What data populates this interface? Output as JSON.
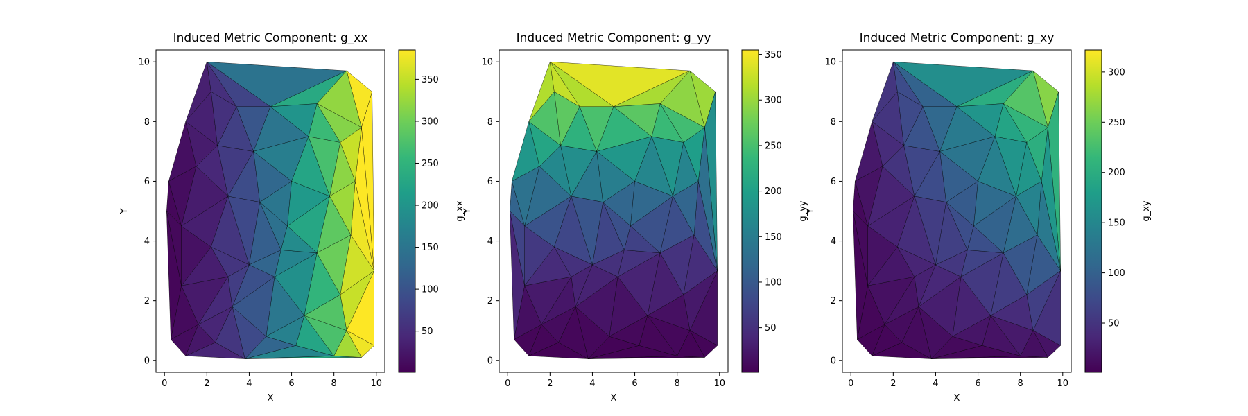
{
  "chart_data": [
    {
      "type": "heatmap",
      "title": "Induced Metric Component: g_xx",
      "xlabel": "X",
      "ylabel": "Y",
      "colorbar_label": "g_xx",
      "xticks": [
        "0",
        "2",
        "4",
        "6",
        "8",
        "10"
      ],
      "yticks": [
        "0",
        "2",
        "4",
        "6",
        "8",
        "10"
      ],
      "xlim": [
        -0.4,
        10.4
      ],
      "ylim": [
        -0.4,
        10.4
      ],
      "colorbar_ticks": [
        "50",
        "100",
        "150",
        "200",
        "250",
        "300",
        "350"
      ],
      "colorbar_tick_values": [
        50,
        100,
        150,
        200,
        250,
        300,
        350
      ],
      "colorbar_range": [
        1,
        385
      ],
      "function": "xx"
    },
    {
      "type": "heatmap",
      "title": "Induced Metric Component: g_yy",
      "xlabel": "X",
      "ylabel": "Y",
      "colorbar_label": "g_yy",
      "xticks": [
        "0",
        "2",
        "4",
        "6",
        "8",
        "10"
      ],
      "yticks": [
        "0",
        "2",
        "4",
        "6",
        "8",
        "10"
      ],
      "xlim": [
        -0.4,
        10.4
      ],
      "ylim": [
        -0.4,
        10.4
      ],
      "colorbar_ticks": [
        "50",
        "100",
        "150",
        "200",
        "250",
        "300",
        "350"
      ],
      "colorbar_tick_values": [
        50,
        100,
        150,
        200,
        250,
        300,
        350
      ],
      "colorbar_range": [
        1,
        355
      ],
      "function": "yy"
    },
    {
      "type": "heatmap",
      "title": "Induced Metric Component: g_xy",
      "xlabel": "X",
      "ylabel": "Y",
      "colorbar_label": "g_xy",
      "xticks": [
        "0",
        "2",
        "4",
        "6",
        "8",
        "10"
      ],
      "yticks": [
        "0",
        "2",
        "4",
        "6",
        "8",
        "10"
      ],
      "xlim": [
        -0.4,
        10.4
      ],
      "ylim": [
        -0.4,
        10.4
      ],
      "colorbar_ticks": [
        "50",
        "100",
        "150",
        "200",
        "250",
        "300"
      ],
      "colorbar_tick_values": [
        50,
        100,
        150,
        200,
        250,
        300
      ],
      "colorbar_range": [
        1,
        322
      ],
      "function": "xy"
    }
  ],
  "mesh": {
    "hull": [
      [
        0.1,
        5.0
      ],
      [
        0.2,
        6.0
      ],
      [
        2.0,
        10.0
      ],
      [
        8.6,
        9.7
      ],
      [
        9.8,
        9.0
      ],
      [
        9.9,
        3.0
      ],
      [
        9.9,
        0.5
      ],
      [
        9.3,
        0.1
      ],
      [
        8.0,
        0.15
      ],
      [
        3.8,
        0.05
      ],
      [
        1.0,
        0.15
      ],
      [
        0.3,
        0.7
      ]
    ],
    "points": [
      [
        1.0,
        8.0
      ],
      [
        1.5,
        6.5
      ],
      [
        0.8,
        4.5
      ],
      [
        0.8,
        2.5
      ],
      [
        1.6,
        1.2
      ],
      [
        2.2,
        3.8
      ],
      [
        3.0,
        5.5
      ],
      [
        2.5,
        7.2
      ],
      [
        3.4,
        8.5
      ],
      [
        5.0,
        8.5
      ],
      [
        4.2,
        7.0
      ],
      [
        4.5,
        5.3
      ],
      [
        4.0,
        3.2
      ],
      [
        3.2,
        1.8
      ],
      [
        4.8,
        0.8
      ],
      [
        5.2,
        2.8
      ],
      [
        5.8,
        4.5
      ],
      [
        6.0,
        6.0
      ],
      [
        6.8,
        7.5
      ],
      [
        7.2,
        8.6
      ],
      [
        8.3,
        7.3
      ],
      [
        7.8,
        5.5
      ],
      [
        7.2,
        3.6
      ],
      [
        6.6,
        1.5
      ],
      [
        8.3,
        2.2
      ],
      [
        8.8,
        4.2
      ],
      [
        9.0,
        6.0
      ],
      [
        9.3,
        7.8
      ],
      [
        2.4,
        0.6
      ],
      [
        6.2,
        0.5
      ],
      [
        8.6,
        1.0
      ],
      [
        2.2,
        9.0
      ],
      [
        3.0,
        2.8
      ],
      [
        5.5,
        3.7
      ]
    ]
  },
  "colors": {
    "viridis_stops": [
      "#440154",
      "#482878",
      "#3e4989",
      "#31688e",
      "#26828e",
      "#1f9e89",
      "#35b779",
      "#6ece58",
      "#b5de2b",
      "#fde725"
    ],
    "edge": "#000000"
  }
}
